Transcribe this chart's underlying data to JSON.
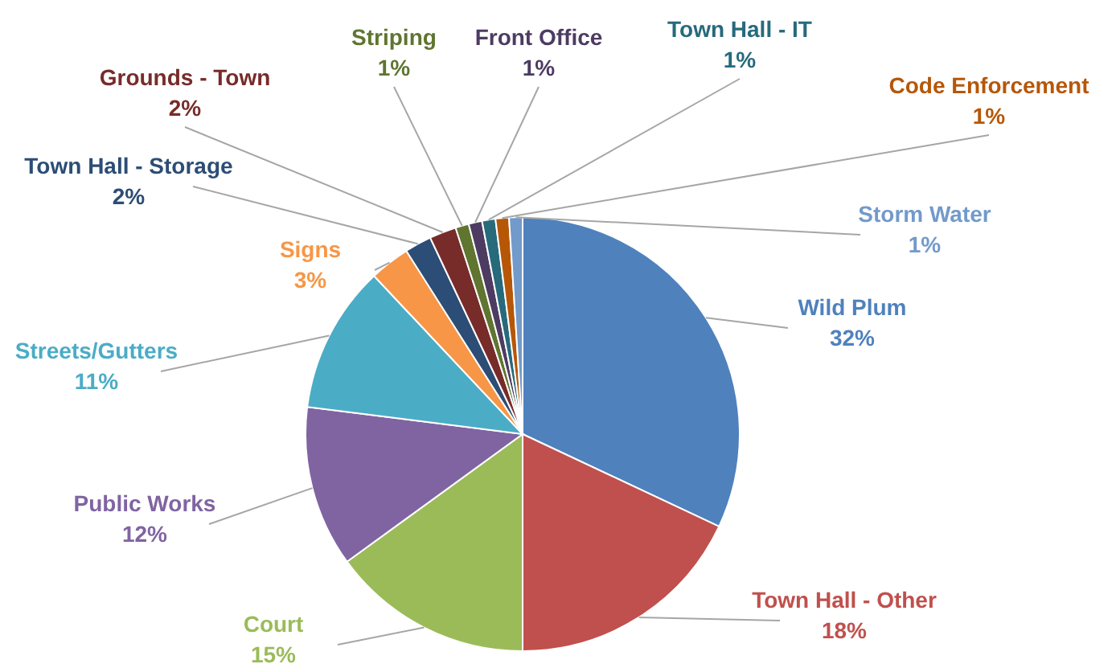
{
  "chart_data": {
    "type": "pie",
    "categories": [
      "Wild Plum",
      "Town Hall - Other",
      "Court",
      "Public Works",
      "Streets/Gutters",
      "Signs",
      "Town Hall - Storage",
      "Grounds - Town",
      "Striping",
      "Front Office",
      "Town Hall - IT",
      "Code Enforcement",
      "Storm Water"
    ],
    "values": [
      32,
      18,
      15,
      12,
      11,
      3,
      2,
      2,
      1,
      1,
      1,
      1,
      1
    ],
    "value_labels": [
      "32%",
      "18%",
      "15%",
      "12%",
      "11%",
      "3%",
      "2%",
      "2%",
      "1%",
      "1%",
      "1%",
      "1%",
      "1%"
    ],
    "colors": [
      "#4f81bd",
      "#c0504d",
      "#9bbb59",
      "#8064a2",
      "#4bacc6",
      "#f79646",
      "#2c4d75",
      "#772c2a",
      "#5f7530",
      "#4d3b62",
      "#276a7c",
      "#b65708",
      "#729aca"
    ],
    "legend": false
  }
}
